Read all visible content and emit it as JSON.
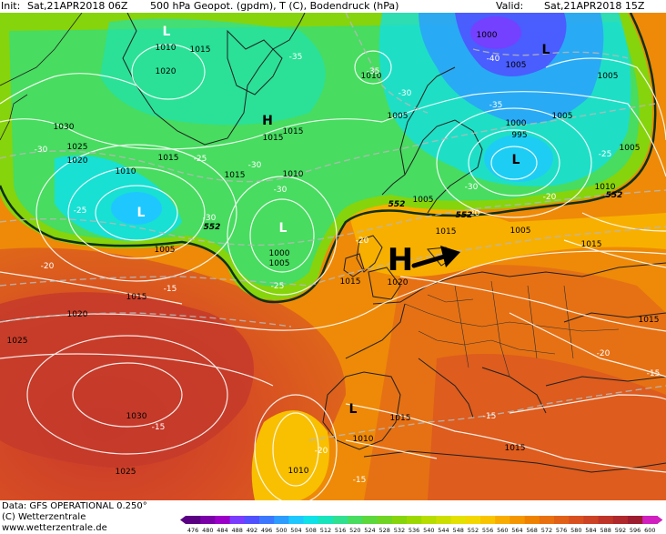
{
  "header": {
    "init_label": "Init:",
    "init_value": "Sat,21APR2018 06Z",
    "title": "500 hPa Geopot. (gpdm), T (C), Bodendruck (hPa)",
    "valid_label": "Valid:",
    "valid_value": "Sat,21APR2018 15Z"
  },
  "footer": {
    "data_source": "Data: GFS OPERATIONAL 0.250°",
    "copyright": "(C) Wetterzentrale",
    "website": "www.wetterzentrale.de"
  },
  "colorbar": {
    "ticks": [
      "476",
      "480",
      "484",
      "488",
      "492",
      "496",
      "500",
      "504",
      "508",
      "512",
      "516",
      "520",
      "524",
      "528",
      "532",
      "536",
      "540",
      "544",
      "548",
      "552",
      "556",
      "560",
      "564",
      "568",
      "572",
      "576",
      "580",
      "584",
      "588",
      "592",
      "596",
      "600"
    ],
    "colors": [
      "#5a0082",
      "#7a00a8",
      "#9a00c8",
      "#7a3cff",
      "#5050ff",
      "#3c78ff",
      "#2c9cff",
      "#1ec8ff",
      "#10e0e8",
      "#18e4bc",
      "#30e090",
      "#48dc60",
      "#5cd83c",
      "#70d424",
      "#86d40c",
      "#9cd800",
      "#b6dc00",
      "#ccde00",
      "#e4e000",
      "#f2d800",
      "#f8c400",
      "#f8ac00",
      "#f49600",
      "#ee8200",
      "#e87010",
      "#e06018",
      "#d85020",
      "#cc4224",
      "#be3428",
      "#ae282c",
      "#9c1c30",
      "#d020c0"
    ]
  },
  "map": {
    "pressure_labels": [
      "1010",
      "1015",
      "1020",
      "1000",
      "1005",
      "1030",
      "1025",
      "1000",
      "995",
      "1005",
      "1010",
      "1015",
      "1005",
      "1020",
      "1015",
      "1025",
      "1030",
      "1020",
      "1015",
      "1010",
      "1005",
      "1015",
      "1000",
      "1005",
      "1010",
      "1015",
      "1015",
      "1005",
      "1015",
      "1005",
      "1010",
      "1015",
      "1020",
      "1010",
      "1015",
      "1025",
      "1005",
      "1015",
      "1010",
      "1005",
      "1015"
    ],
    "temp_labels": [
      "-35",
      "-35",
      "-40",
      "-30",
      "-35",
      "-30",
      "-25",
      "-30",
      "-25",
      "-30",
      "-30",
      "-25",
      "-30",
      "-20",
      "-25",
      "-20",
      "-20",
      "-15",
      "-20",
      "-20",
      "-15",
      "-15",
      "-15",
      "-20",
      "-15"
    ],
    "geopot_labels": [
      "552",
      "552",
      "552",
      "552"
    ],
    "pressure_center_labels": [
      "L",
      "L",
      "L",
      "L",
      "H",
      "L",
      "L",
      "H"
    ]
  }
}
